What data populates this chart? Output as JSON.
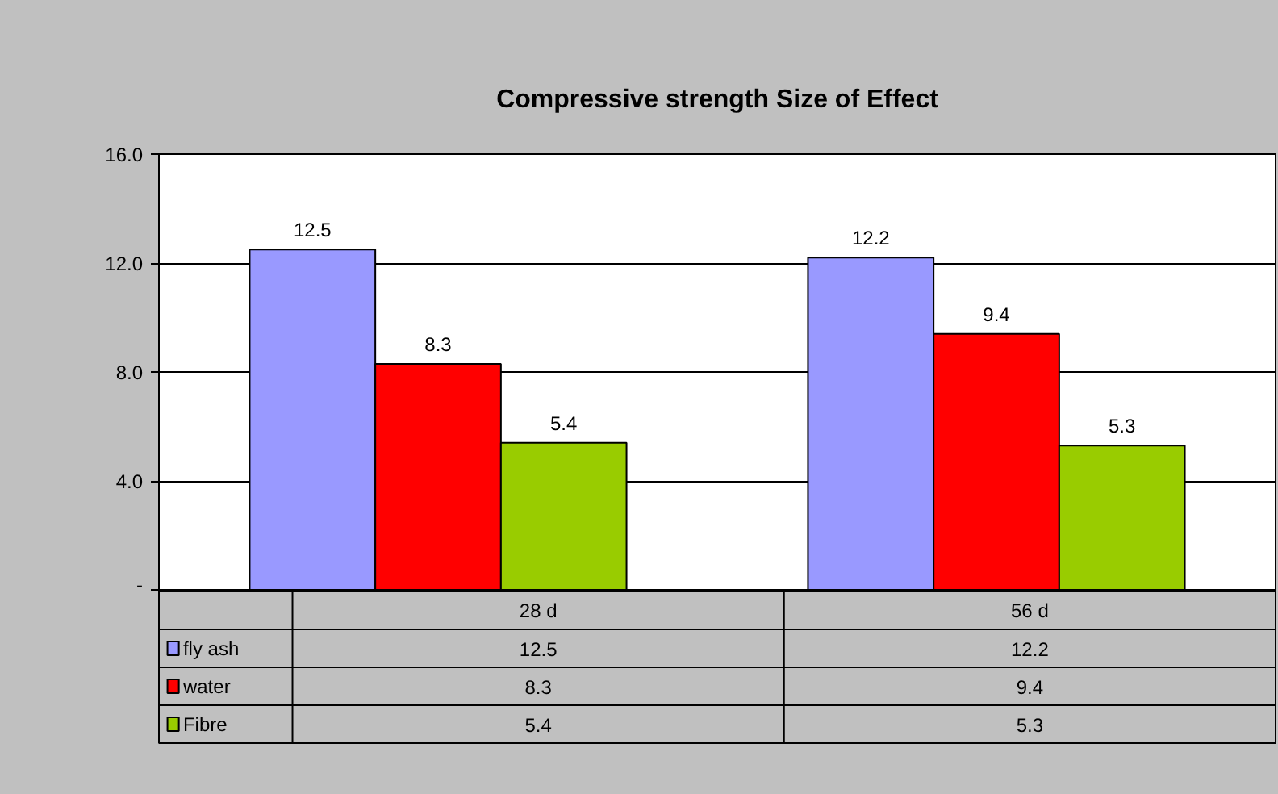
{
  "chart_data": {
    "type": "bar",
    "title": "Compressive strength Size of Effect",
    "categories": [
      "28 d",
      "56 d"
    ],
    "series": [
      {
        "name": "fly ash",
        "color": "#9999ff",
        "values": [
          12.5,
          12.2
        ],
        "value_labels": [
          "12.5",
          "12.2"
        ]
      },
      {
        "name": "water",
        "color": "#ff0000",
        "values": [
          8.3,
          9.4
        ],
        "value_labels": [
          "8.3",
          "9.4"
        ]
      },
      {
        "name": "Fibre",
        "color": "#99cc00",
        "values": [
          5.4,
          5.3
        ],
        "value_labels": [
          "5.4",
          "5.3"
        ]
      }
    ],
    "ylim": [
      0,
      16
    ],
    "yticks": [
      {
        "value": 0,
        "label": "-"
      },
      {
        "value": 4,
        "label": "4.0"
      },
      {
        "value": 8,
        "label": "8.0"
      },
      {
        "value": 12,
        "label": "12.0"
      },
      {
        "value": 16,
        "label": "16.0"
      }
    ],
    "annotations": [
      "12.5",
      "12.2",
      "8.3",
      "9.4",
      "5.4",
      "5.3"
    ],
    "grid": "y",
    "legend": "bottom"
  }
}
